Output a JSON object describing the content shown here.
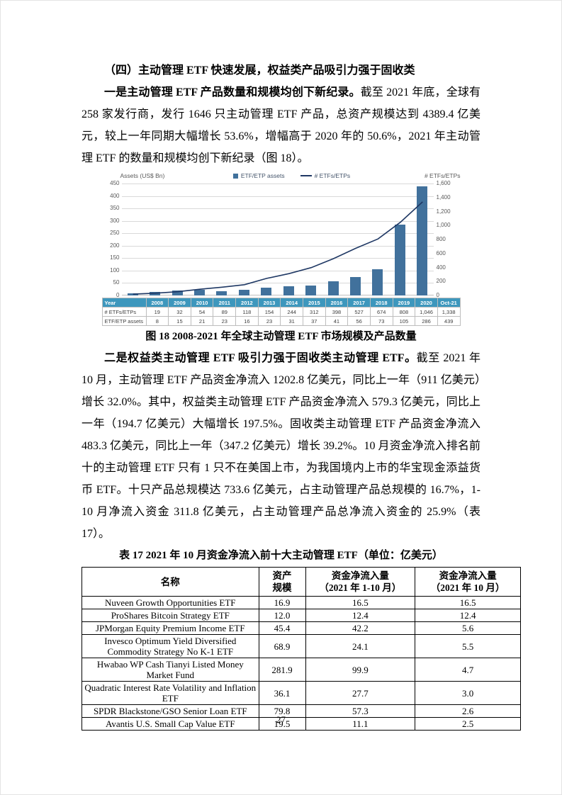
{
  "page": {
    "number": "27"
  },
  "heading": "（四）主动管理 ETF 快速发展，权益类产品吸引力强于固收类",
  "paragraphs": [
    {
      "segments": [
        {
          "text": "一是主动管理 ETF 产品数量和规模均创下新纪录。",
          "bold": true
        },
        {
          "text": "截至 2021 年底，全球有 258 家发行商，发行 1646 只主动管理 ETF 产品，总资产规模达到 4389.4 亿美元，较上一年同期大幅增长 53.6%，增幅高于 2020 年的 50.6%，2021 年主动管理 ETF 的数量和规模均创下新纪录（图 18）。",
          "bold": false
        }
      ]
    },
    {
      "segments": [
        {
          "text": "二是权益类主动管理 ETF 吸引力强于固收类主动管理 ETF。",
          "bold": true
        },
        {
          "text": "截至 2021 年 10 月，主动管理 ETF 产品资金净流入 1202.8 亿美元，同比上一年（911 亿美元）增长 32.0%。其中，权益类主动管理 ETF 产品资金净流入 579.3 亿美元，同比上一年（194.7 亿美元）大幅增长 197.5%。固收类主动管理 ETF 产品资金净流入 483.3 亿美元，同比上一年（347.2 亿美元）增长 39.2%。10 月资金净流入排名前十的主动管理 ETF 只有 1 只不在美国上市，为我国境内上市的华宝现金添益货币 ETF。十只产品总规模达 733.6 亿美元，占主动管理产品总规模的 16.7%，1-10 月净流入资金 311.8 亿美元，占主动管理产品总净流入资金的 25.9%（表 17）。",
          "bold": false
        }
      ]
    }
  ],
  "figure": {
    "caption": "图 18  2008-2021 年全球主动管理 ETF 市场规模及产品数量"
  },
  "chart_data": {
    "type": "bar",
    "title": "",
    "left_axis_label": "Assets (US$ Bn)",
    "right_axis_label": "# ETFs/ETPs",
    "categories": [
      "2008",
      "2009",
      "2010",
      "2011",
      "2012",
      "2013",
      "2014",
      "2015",
      "2016",
      "2017",
      "2018",
      "2019",
      "2020",
      "Oct-21"
    ],
    "series": [
      {
        "name": "ETF/ETP assets",
        "type": "bar",
        "axis": "left",
        "values": [
          8,
          15,
          21,
          23,
          16,
          23,
          31,
          37,
          41,
          56,
          73,
          105,
          286,
          439
        ]
      },
      {
        "name": "# ETFs/ETPs",
        "type": "line",
        "axis": "right",
        "values": [
          19,
          32,
          54,
          89,
          118,
          154,
          244,
          312,
          398,
          527,
          674,
          808,
          1046,
          1338
        ]
      }
    ],
    "left_axis": {
      "min": 0,
      "max": 450,
      "step": 50
    },
    "right_axis": {
      "min": 0,
      "max": 1600,
      "step": 200
    },
    "grid": true,
    "legend_position": "top-center",
    "colors": {
      "bar": "#41719C",
      "line": "#1F3864",
      "table_header_bg": "#3D97BD"
    }
  },
  "chart_table": {
    "header": [
      "Year",
      "2008",
      "2009",
      "2010",
      "2011",
      "2012",
      "2013",
      "2014",
      "2015",
      "2016",
      "2017",
      "2018",
      "2019",
      "2020",
      "Oct-21"
    ],
    "rows": [
      [
        "# ETFs/ETPs",
        "19",
        "32",
        "54",
        "89",
        "118",
        "154",
        "244",
        "312",
        "398",
        "527",
        "674",
        "808",
        "1,046",
        "1,338"
      ],
      [
        "ETF/ETP assets",
        "8",
        "15",
        "21",
        "23",
        "16",
        "23",
        "31",
        "37",
        "41",
        "56",
        "73",
        "105",
        "286",
        "439"
      ]
    ]
  },
  "table": {
    "caption": "表 17  2021 年 10 月资金净流入前十大主动管理 ETF（单位：亿美元）",
    "headers": [
      [
        "名称"
      ],
      [
        "资产",
        "规模"
      ],
      [
        "资金净流入量",
        "（2021 年 1-10 月）"
      ],
      [
        "资金净流入量",
        "（2021 年 10 月）"
      ]
    ],
    "rows": [
      [
        "Nuveen Growth Opportunities ETF",
        "16.9",
        "16.5",
        "16.5"
      ],
      [
        "ProShares Bitcoin Strategy ETF",
        "12.0",
        "12.4",
        "12.4"
      ],
      [
        "JPMorgan Equity Premium Income ETF",
        "45.4",
        "42.2",
        "5.6"
      ],
      [
        "Invesco Optimum Yield Diversified Commodity Strategy No K-1 ETF",
        "68.9",
        "24.1",
        "5.5"
      ],
      [
        "Hwabao WP Cash Tianyi Listed Money Market Fund",
        "281.9",
        "99.9",
        "4.7"
      ],
      [
        "Quadratic Interest Rate Volatility and Inflation ETF",
        "36.1",
        "27.7",
        "3.0"
      ],
      [
        "SPDR Blackstone/GSO Senior Loan ETF",
        "79.8",
        "57.3",
        "2.6"
      ],
      [
        "Avantis U.S. Small Cap Value ETF",
        "19.5",
        "11.1",
        "2.5"
      ]
    ]
  }
}
